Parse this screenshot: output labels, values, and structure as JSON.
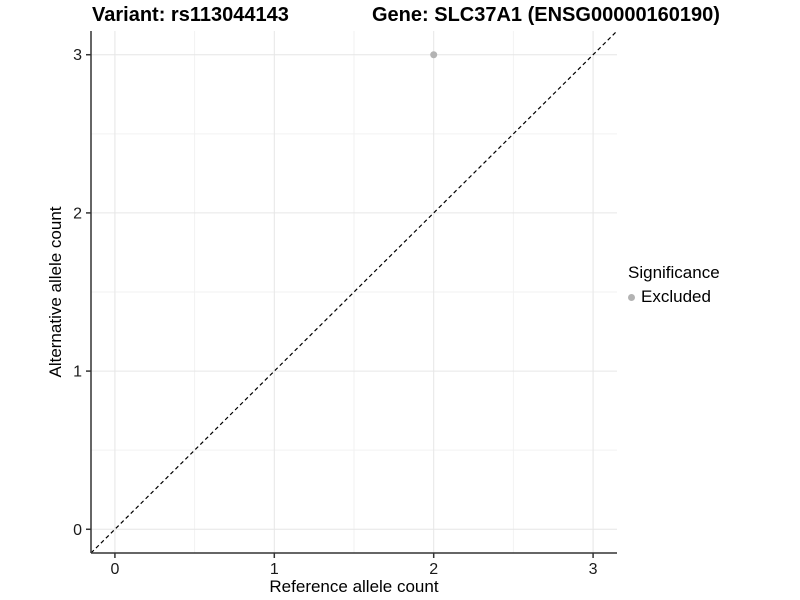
{
  "chart_data": {
    "type": "scatter",
    "title_left": "Variant: rs113044143",
    "title_right": "Gene: SLC37A1 (ENSG00000160190)",
    "xlabel": "Reference allele count",
    "ylabel": "Alternative allele count",
    "xlim": [
      -0.15,
      3.15
    ],
    "ylim": [
      -0.15,
      3.15
    ],
    "x_ticks": [
      0,
      1,
      2,
      3
    ],
    "y_ticks": [
      0,
      1,
      2,
      3
    ],
    "x_minor_ticks": [
      0.5,
      1.5,
      2.5
    ],
    "y_minor_ticks": [
      0.5,
      1.5,
      2.5
    ],
    "grid": "major-and-minor",
    "identity_line": {
      "slope": 1,
      "intercept": 0,
      "style": "dashed",
      "color": "#000000"
    },
    "series": [
      {
        "name": "Excluded",
        "color": "#b3b3b3",
        "points": [
          {
            "x": 2,
            "y": 3
          }
        ]
      }
    ],
    "legend": {
      "title": "Significance",
      "position": "right",
      "items": [
        {
          "label": "Excluded",
          "color": "#b3b3b3",
          "marker": "circle"
        }
      ]
    },
    "colors": {
      "panel_background": "#ffffff",
      "grid_major": "#e6e6e6",
      "grid_minor": "#f2f2f2",
      "axis_line": "#333333",
      "tick_text": "#1a1a1a",
      "point": "#b3b3b3"
    }
  }
}
